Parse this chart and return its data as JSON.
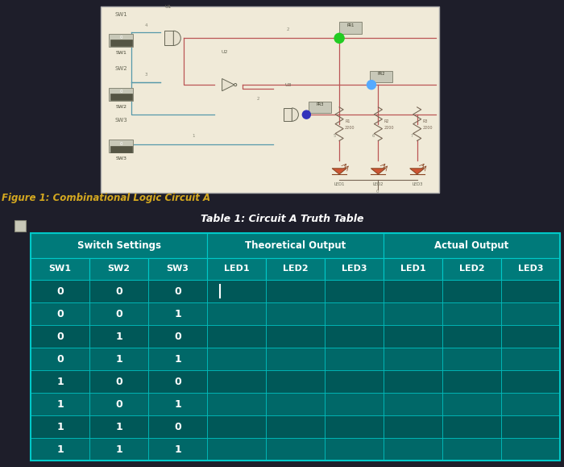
{
  "bg_color": "#1e1e2a",
  "circuit_bg": "#f0ead8",
  "figure_caption": "Figure 1: Combinational Logic Circuit A",
  "caption_color": "#d4a820",
  "table_title": "Table 1: Circuit A Truth Table",
  "table_bg": "#006868",
  "table_header_bg": "#007a7a",
  "table_cell_alt": "#005858",
  "table_line_color": "#00c8c8",
  "table_text_color": "#ffffff",
  "wire_red": "#bb5555",
  "wire_teal": "#5599aa",
  "gate_fill": "#e8e2d0",
  "gate_edge": "#666655",
  "switch_fill": "#c8c8b8",
  "switch_inner": "#555544",
  "resistor_color": "#776655",
  "led_fill": "#cc5533",
  "probe_green": "#22cc22",
  "probe_blue": "#55aaff",
  "probe_navy": "#3333bb",
  "rows": [
    [
      0,
      0,
      0
    ],
    [
      0,
      0,
      1
    ],
    [
      0,
      1,
      0
    ],
    [
      0,
      1,
      1
    ],
    [
      1,
      0,
      0
    ],
    [
      1,
      0,
      1
    ],
    [
      1,
      1,
      0
    ],
    [
      1,
      1,
      1
    ]
  ]
}
